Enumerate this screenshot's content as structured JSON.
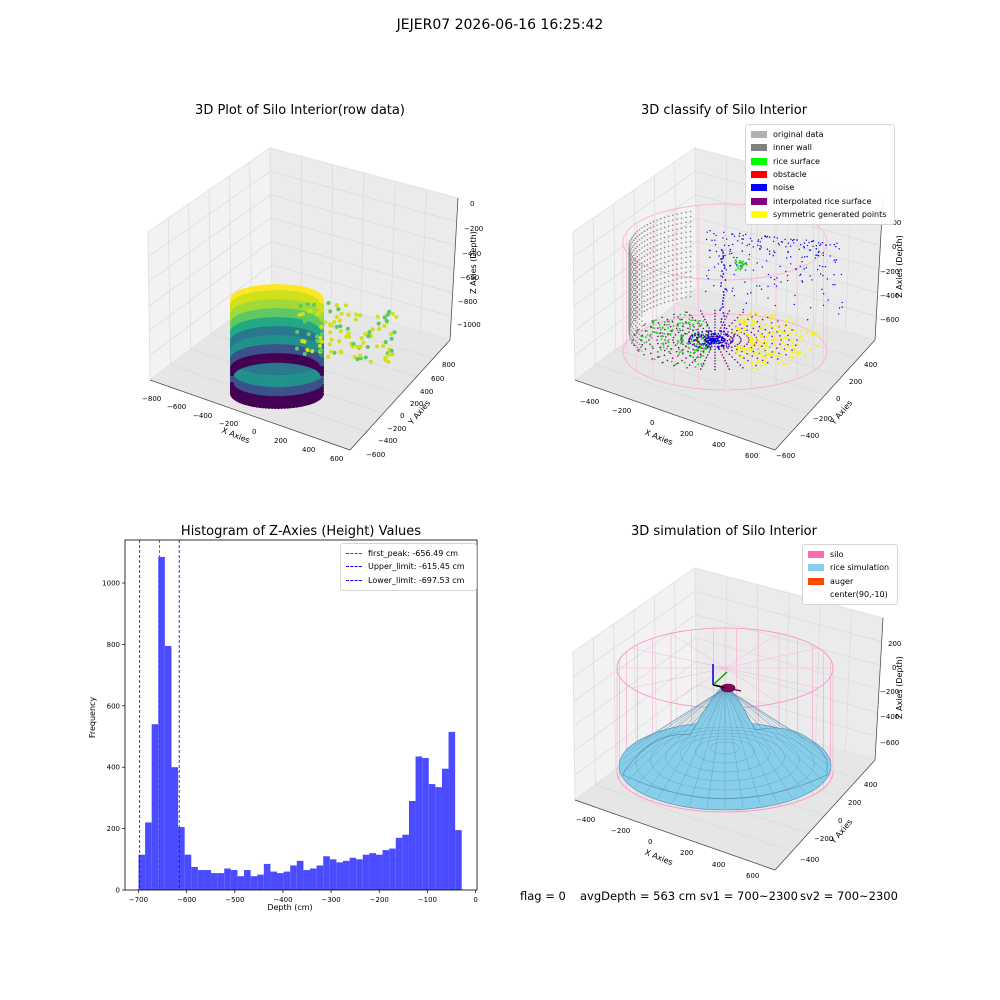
{
  "suptitle": "JEJER07 2026-06-16 16:25:42",
  "status": {
    "flag": "flag = 0",
    "avg_depth": "avgDepth = 563 cm",
    "sv1": "sv1 = 700~2300",
    "sv2": "sv2 = 700~2300"
  },
  "plot1": {
    "title": "3D Plot of Silo Interior(row data)",
    "xlabel": "X Axies",
    "ylabel": "Y Axies",
    "zlabel": "Z Axies (Depth)",
    "xticks": [
      "−800",
      "−600",
      "−400",
      "−200",
      "0",
      "200",
      "400",
      "600"
    ],
    "yticks": [
      "800",
      "600",
      "400",
      "200",
      "0",
      "−200",
      "−400",
      "−600"
    ],
    "zticks": [
      "0",
      "−200",
      "−400",
      "−600",
      "−800",
      "−1000"
    ]
  },
  "plot2": {
    "title": "3D classify of Silo Interior",
    "xlabel": "X Axies",
    "ylabel": "Y Axies",
    "zlabel": "Z Axies (Depth)",
    "xticks": [
      "−400",
      "−200",
      "0",
      "200",
      "400",
      "600"
    ],
    "yticks": [
      "400",
      "200",
      "0",
      "−200",
      "−400",
      "−600"
    ],
    "zticks": [
      "200",
      "0",
      "−200",
      "−400",
      "−600"
    ],
    "legend": [
      {
        "label": "original data",
        "color": "#b0b0b0"
      },
      {
        "label": "inner wall",
        "color": "#808080"
      },
      {
        "label": "rice surface",
        "color": "#00ff00"
      },
      {
        "label": "obstacle",
        "color": "#ff0000"
      },
      {
        "label": "noise",
        "color": "#0000ff"
      },
      {
        "label": "interpolated rice surface",
        "color": "#800080"
      },
      {
        "label": "symmetric generated points",
        "color": "#ffff00"
      }
    ]
  },
  "plot3": {
    "title": "3D simulation of Silo Interior",
    "xlabel": "X Axies",
    "ylabel": "Y Axies",
    "zlabel": "Z Axies (Depth)",
    "xticks": [
      "−400",
      "−200",
      "0",
      "200",
      "400",
      "600"
    ],
    "yticks": [
      "400",
      "200",
      "0",
      "−200",
      "−400"
    ],
    "zticks": [
      "200",
      "0",
      "−200",
      "−400",
      "−600"
    ],
    "legend": [
      {
        "label": "silo",
        "color": "#ff69b4"
      },
      {
        "label": "rice simulation",
        "color": "#87ceeb"
      },
      {
        "label": "auger",
        "color": "#ff4500"
      },
      {
        "label": "center(90,-10)",
        "color": ""
      }
    ]
  },
  "chart_data": {
    "type": "bar",
    "title": "Histogram of Z-Axies (Height) Values",
    "xlabel": "Depth (cm)",
    "ylabel": "Frequency",
    "xlim": [
      -728,
      3
    ],
    "ylim": [
      0,
      1140
    ],
    "xticks": [
      -700,
      -600,
      -500,
      -400,
      -300,
      -200,
      -100,
      0
    ],
    "yticks": [
      0,
      200,
      400,
      600,
      800,
      1000
    ],
    "bar_color": "#4b4bff",
    "bin_start": -700,
    "bin_width": 13.7,
    "values": [
      115,
      220,
      540,
      1085,
      795,
      400,
      205,
      115,
      75,
      65,
      65,
      55,
      55,
      70,
      65,
      45,
      65,
      45,
      50,
      85,
      60,
      55,
      60,
      80,
      95,
      65,
      70,
      80,
      110,
      100,
      90,
      95,
      105,
      100,
      115,
      120,
      115,
      130,
      135,
      170,
      180,
      290,
      435,
      430,
      345,
      335,
      395,
      515,
      195
    ],
    "vlines": [
      {
        "label": "first_peak: -656.49 cm",
        "value": -656.49,
        "color": "#ff0000"
      },
      {
        "label": "Upper_limit: -615.45 cm",
        "value": -615.45,
        "color": "#0000ff"
      },
      {
        "label": "Lower_limit: -697.53 cm",
        "value": -697.53,
        "color": "#0000ff"
      }
    ],
    "legend_loc": "upper right"
  }
}
